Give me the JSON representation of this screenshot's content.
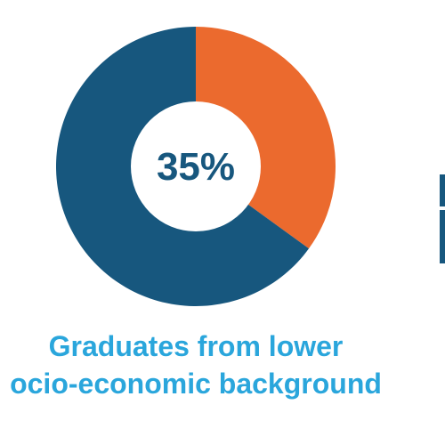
{
  "chart_data": {
    "type": "pie",
    "style": "donut",
    "slices": [
      {
        "label": "Graduates from lower socio-economic background",
        "value": 35,
        "color": "#eb6a2e"
      },
      {
        "label": "",
        "value": 65,
        "color": "#17577e"
      }
    ],
    "center_label": "35%",
    "caption_lines": [
      "Graduates from lower",
      "ocio-economic background"
    ]
  },
  "colors": {
    "accent_orange": "#eb6a2e",
    "primary_navy": "#17577e",
    "caption_blue": "#2aa6dc"
  }
}
